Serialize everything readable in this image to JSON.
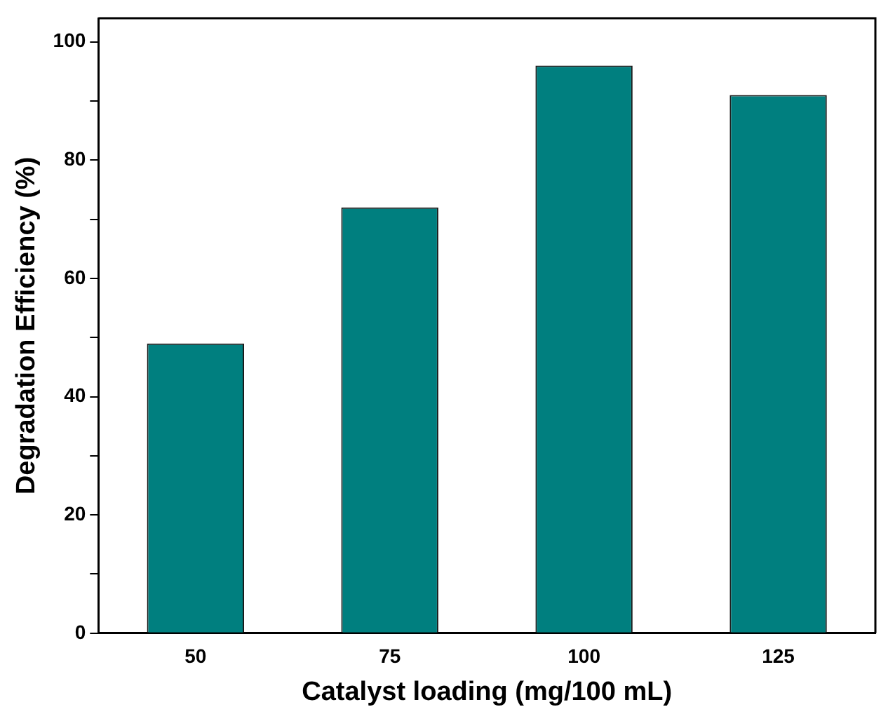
{
  "chart_data": {
    "type": "bar",
    "xlabel": "Catalyst loading (mg/100 mL)",
    "ylabel": "Degradation Efficiency (%)",
    "categories": [
      "50",
      "75",
      "100",
      "125"
    ],
    "values": [
      49,
      72,
      96,
      91
    ],
    "color": "#007f7f",
    "ylim": [
      0,
      104
    ],
    "yticks": [
      0,
      {
        "value": 10,
        "label": null
      },
      20,
      {
        "value": 30,
        "label": null
      },
      40,
      {
        "value": 50,
        "label": null
      },
      60,
      {
        "value": 70,
        "label": null
      },
      80,
      {
        "value": 90,
        "label": null
      },
      100
    ],
    "grid": false,
    "legend": false
  }
}
